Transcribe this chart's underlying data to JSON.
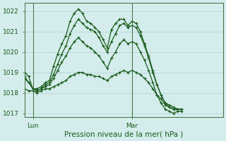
{
  "xlabel": "Pression niveau de la mer( hPa )",
  "bg_color": "#d4ecec",
  "grid_color": "#a8cccc",
  "line_color": "#1a5c1a",
  "spine_color": "#3a6b3a",
  "ylim": [
    1016.8,
    1022.4
  ],
  "yticks": [
    1017,
    1018,
    1019,
    1020,
    1021,
    1022
  ],
  "xlim": [
    0,
    48
  ],
  "x_lun": 2,
  "x_mar": 26,
  "series": [
    [
      0,
      1019.0,
      1,
      1018.8,
      2,
      1018.2,
      3,
      1018.2,
      4,
      1018.3,
      5,
      1018.5,
      6,
      1018.6,
      7,
      1019.3,
      8,
      1019.9,
      9,
      1020.4,
      10,
      1020.8,
      11,
      1021.5,
      12,
      1021.9,
      13,
      1022.1,
      14,
      1021.9,
      15,
      1021.5,
      16,
      1021.4,
      17,
      1021.2,
      18,
      1021.0,
      19,
      1020.6,
      20,
      1020.2,
      21,
      1021.1,
      22,
      1021.4,
      23,
      1021.6,
      24,
      1021.6,
      25,
      1021.3,
      26,
      1021.5,
      27,
      1021.4,
      28,
      1021.0,
      29,
      1020.4,
      30,
      1019.8,
      31,
      1019.1,
      32,
      1018.4,
      33,
      1017.9,
      34,
      1017.5,
      35,
      1017.4,
      36,
      1017.3,
      37,
      1017.2,
      38,
      1017.2
    ],
    [
      0,
      1018.8,
      1,
      1018.5,
      2,
      1018.2,
      3,
      1018.1,
      4,
      1018.2,
      5,
      1018.4,
      6,
      1018.5,
      7,
      1018.9,
      8,
      1019.4,
      9,
      1019.9,
      10,
      1020.3,
      11,
      1020.9,
      12,
      1021.3,
      13,
      1021.6,
      14,
      1021.4,
      15,
      1021.2,
      16,
      1021.1,
      17,
      1021.0,
      18,
      1020.7,
      19,
      1020.3,
      20,
      1020.0,
      21,
      1020.5,
      22,
      1020.9,
      23,
      1021.3,
      24,
      1021.4,
      25,
      1021.2,
      26,
      1021.3,
      27,
      1021.2,
      28,
      1020.8,
      29,
      1020.3,
      30,
      1019.7,
      31,
      1019.0,
      32,
      1018.4,
      33,
      1017.9,
      34,
      1017.5,
      35,
      1017.3,
      36,
      1017.2,
      37,
      1017.2,
      38,
      1017.2
    ],
    [
      0,
      1018.7,
      1,
      1018.5,
      2,
      1018.2,
      3,
      1018.1,
      4,
      1018.2,
      5,
      1018.3,
      6,
      1018.4,
      7,
      1018.7,
      8,
      1019.1,
      9,
      1019.5,
      10,
      1019.8,
      11,
      1020.2,
      12,
      1020.5,
      13,
      1020.7,
      14,
      1020.5,
      15,
      1020.3,
      16,
      1020.2,
      17,
      1020.0,
      18,
      1019.8,
      19,
      1019.5,
      20,
      1019.2,
      21,
      1019.7,
      22,
      1020.0,
      23,
      1020.4,
      24,
      1020.6,
      25,
      1020.4,
      26,
      1020.5,
      27,
      1020.4,
      28,
      1020.0,
      29,
      1019.6,
      30,
      1019.1,
      31,
      1018.5,
      32,
      1017.9,
      33,
      1017.5,
      34,
      1017.2,
      35,
      1017.1,
      36,
      1017.0,
      37,
      1017.1,
      38,
      1017.1
    ],
    [
      0,
      1018.2,
      1,
      1018.1,
      2,
      1018.1,
      3,
      1018.0,
      4,
      1018.1,
      5,
      1018.2,
      6,
      1018.2,
      7,
      1018.3,
      8,
      1018.4,
      9,
      1018.5,
      10,
      1018.6,
      11,
      1018.8,
      12,
      1018.9,
      13,
      1019.0,
      14,
      1019.0,
      15,
      1018.9,
      16,
      1018.9,
      17,
      1018.8,
      18,
      1018.8,
      19,
      1018.7,
      20,
      1018.6,
      21,
      1018.8,
      22,
      1018.9,
      23,
      1019.0,
      24,
      1019.1,
      25,
      1019.0,
      26,
      1019.1,
      27,
      1019.0,
      28,
      1018.9,
      29,
      1018.7,
      30,
      1018.5,
      31,
      1018.2,
      32,
      1017.9,
      33,
      1017.7,
      34,
      1017.4,
      35,
      1017.3,
      36,
      1017.2,
      37,
      1017.2,
      38,
      1017.2
    ]
  ]
}
